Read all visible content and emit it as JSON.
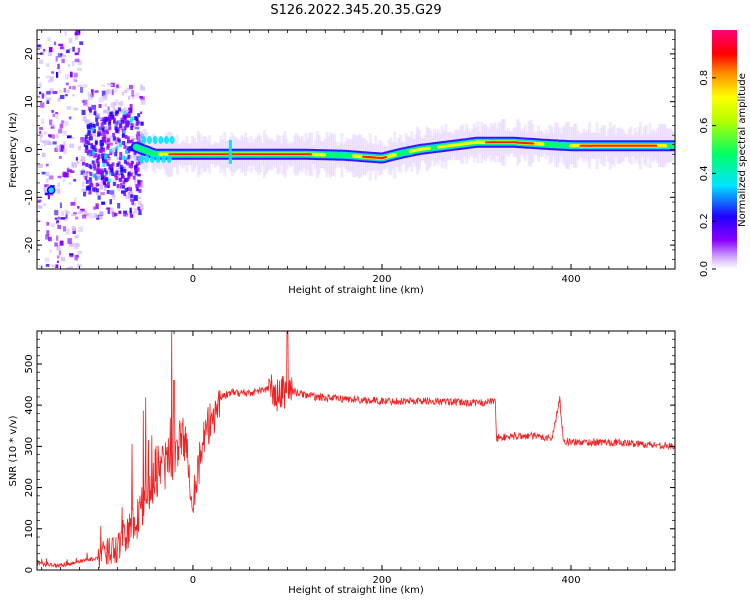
{
  "title": "S126.2022.345.20.35.G29",
  "colorbar": {
    "label": "Normalized spectral amplitude",
    "ticks": [
      "0.0",
      "0.2",
      "0.4",
      "0.6",
      "0.8"
    ],
    "tick_values": [
      0.0,
      0.2,
      0.4,
      0.6,
      0.8
    ],
    "range": [
      0,
      1
    ],
    "colormap": [
      "#ffffff",
      "#e6d3ff",
      "#8a00ff",
      "#2200ff",
      "#00e5ff",
      "#00ff7a",
      "#b6ff00",
      "#ffff00",
      "#ff8c00",
      "#ff0000",
      "#ff0070"
    ]
  },
  "chart_data": [
    {
      "type": "heatmap",
      "xlabel": "Height of straight line (km)",
      "ylabel": "Frequency (Hz)",
      "xlim": [
        -165,
        510
      ],
      "ylim": [
        -25,
        25
      ],
      "xticks": [
        0,
        200,
        400
      ],
      "xtick_labels": [
        "0",
        "200",
        "400"
      ],
      "yticks": [
        -20,
        -10,
        0,
        10,
        20
      ],
      "ytick_labels": [
        "-20",
        "-10",
        "0",
        "10",
        "20"
      ],
      "ridge": {
        "x": [
          -60,
          -40,
          -20,
          0,
          40,
          80,
          120,
          160,
          200,
          220,
          240,
          260,
          280,
          300,
          340,
          380,
          400,
          440,
          480,
          510
        ],
        "y": [
          0.5,
          -1.0,
          -1.0,
          -1.0,
          -1.0,
          -1.0,
          -1.0,
          -1.2,
          -1.8,
          -0.8,
          0.0,
          0.5,
          1.0,
          1.5,
          1.5,
          1.0,
          0.8,
          0.8,
          0.8,
          0.8
        ]
      }
    },
    {
      "type": "line",
      "xlabel": "Height of straight line (km)",
      "ylabel": "SNR (10 * v/v)",
      "xlim": [
        -165,
        510
      ],
      "ylim": [
        0,
        580
      ],
      "xticks": [
        0,
        200,
        400
      ],
      "xtick_labels": [
        "0",
        "200",
        "400"
      ],
      "yticks": [
        0,
        100,
        200,
        300,
        400,
        500
      ],
      "ytick_labels": [
        "0",
        "100",
        "200",
        "300",
        "400",
        "500"
      ],
      "color": "#ee2222",
      "series": [
        {
          "x": [
            -165,
            -140,
            -120,
            -100,
            -80,
            -60,
            -50,
            -40,
            -30,
            -20,
            -10,
            0,
            10,
            20,
            30,
            40,
            60,
            80,
            90,
            100,
            110,
            130,
            160,
            200,
            250,
            300,
            320,
            321,
            340,
            360,
            380,
            388,
            392,
            400,
            440,
            480,
            510
          ],
          "y": [
            15,
            10,
            20,
            30,
            60,
            120,
            170,
            240,
            250,
            280,
            330,
            180,
            300,
            370,
            420,
            430,
            430,
            440,
            420,
            440,
            430,
            420,
            415,
            410,
            410,
            405,
            410,
            320,
            325,
            325,
            320,
            415,
            315,
            310,
            310,
            305,
            300
          ]
        }
      ]
    }
  ]
}
